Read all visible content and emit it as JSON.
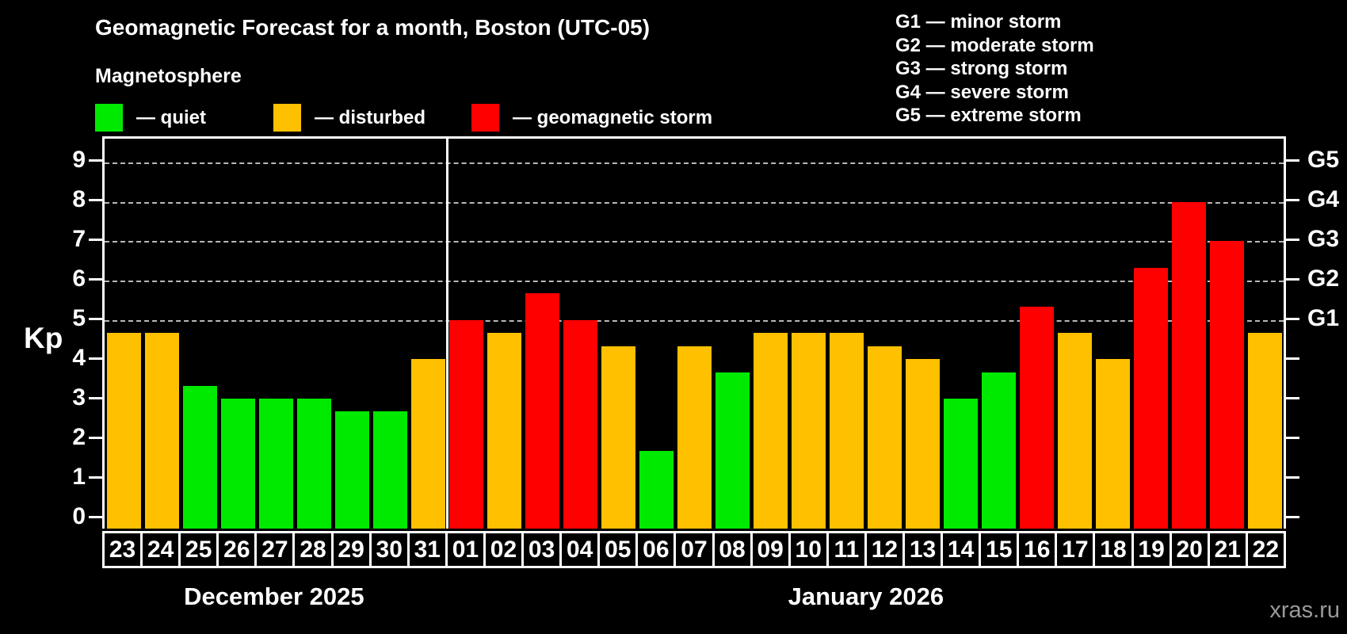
{
  "header": {
    "title": "Geomagnetic Forecast for a month, Boston (UTC-05)",
    "subtitle": "Magnetosphere"
  },
  "legend": {
    "items": [
      {
        "name": "quiet",
        "label": "— quiet",
        "color": "#00ea00"
      },
      {
        "name": "disturbed",
        "label": "— disturbed",
        "color": "#ffc000"
      },
      {
        "name": "storm",
        "label": "— geomagnetic storm",
        "color": "#ff0000"
      }
    ]
  },
  "storm_legend": {
    "lines": [
      "G1 — minor storm",
      "G2 — moderate storm",
      "G3 — strong storm",
      "G4 — severe storm",
      "G5 — extreme storm"
    ]
  },
  "watermark": "xras.ru",
  "chart_data": {
    "type": "bar",
    "title": "Geomagnetic Forecast for a month, Boston (UTC-05)",
    "ylabel": "Kp",
    "ylim": [
      -0.3,
      9.6
    ],
    "yticks": [
      0,
      1,
      2,
      3,
      4,
      5,
      6,
      7,
      8,
      9
    ],
    "gridline_levels": [
      5,
      6,
      7,
      8,
      9
    ],
    "grid": "dashed horizontal lines at storm thresholds only",
    "legend_position": "top-left",
    "right_axis_labels": [
      {
        "level": 5,
        "code": "G1"
      },
      {
        "level": 6,
        "code": "G2"
      },
      {
        "level": 7,
        "code": "G3"
      },
      {
        "level": 8,
        "code": "G4"
      },
      {
        "level": 9,
        "code": "G5"
      }
    ],
    "months": [
      {
        "label": "December 2025",
        "days": 9
      },
      {
        "label": "January 2026",
        "days": 22
      }
    ],
    "status_colors": {
      "quiet": "#00ea00",
      "disturbed": "#ffc000",
      "storm": "#ff0000"
    },
    "bars": [
      {
        "day": "23",
        "kp": 4.67,
        "status": "disturbed"
      },
      {
        "day": "24",
        "kp": 4.67,
        "status": "disturbed"
      },
      {
        "day": "25",
        "kp": 3.33,
        "status": "quiet"
      },
      {
        "day": "26",
        "kp": 3.0,
        "status": "quiet"
      },
      {
        "day": "27",
        "kp": 3.0,
        "status": "quiet"
      },
      {
        "day": "28",
        "kp": 3.0,
        "status": "quiet"
      },
      {
        "day": "29",
        "kp": 2.67,
        "status": "quiet"
      },
      {
        "day": "30",
        "kp": 2.67,
        "status": "quiet"
      },
      {
        "day": "31",
        "kp": 4.0,
        "status": "disturbed"
      },
      {
        "day": "01",
        "kp": 5.0,
        "status": "storm"
      },
      {
        "day": "02",
        "kp": 4.67,
        "status": "disturbed"
      },
      {
        "day": "03",
        "kp": 5.67,
        "status": "storm"
      },
      {
        "day": "04",
        "kp": 5.0,
        "status": "storm"
      },
      {
        "day": "05",
        "kp": 4.33,
        "status": "disturbed"
      },
      {
        "day": "06",
        "kp": 1.67,
        "status": "quiet"
      },
      {
        "day": "07",
        "kp": 4.33,
        "status": "disturbed"
      },
      {
        "day": "08",
        "kp": 3.67,
        "status": "quiet"
      },
      {
        "day": "09",
        "kp": 4.67,
        "status": "disturbed"
      },
      {
        "day": "10",
        "kp": 4.67,
        "status": "disturbed"
      },
      {
        "day": "11",
        "kp": 4.67,
        "status": "disturbed"
      },
      {
        "day": "12",
        "kp": 4.33,
        "status": "disturbed"
      },
      {
        "day": "13",
        "kp": 4.0,
        "status": "disturbed"
      },
      {
        "day": "14",
        "kp": 3.0,
        "status": "quiet"
      },
      {
        "day": "15",
        "kp": 3.67,
        "status": "quiet"
      },
      {
        "day": "16",
        "kp": 5.33,
        "status": "storm"
      },
      {
        "day": "17",
        "kp": 4.67,
        "status": "disturbed"
      },
      {
        "day": "18",
        "kp": 4.0,
        "status": "disturbed"
      },
      {
        "day": "19",
        "kp": 6.33,
        "status": "storm"
      },
      {
        "day": "20",
        "kp": 8.0,
        "status": "storm"
      },
      {
        "day": "21",
        "kp": 7.0,
        "status": "storm"
      },
      {
        "day": "22",
        "kp": 4.67,
        "status": "disturbed"
      }
    ]
  }
}
